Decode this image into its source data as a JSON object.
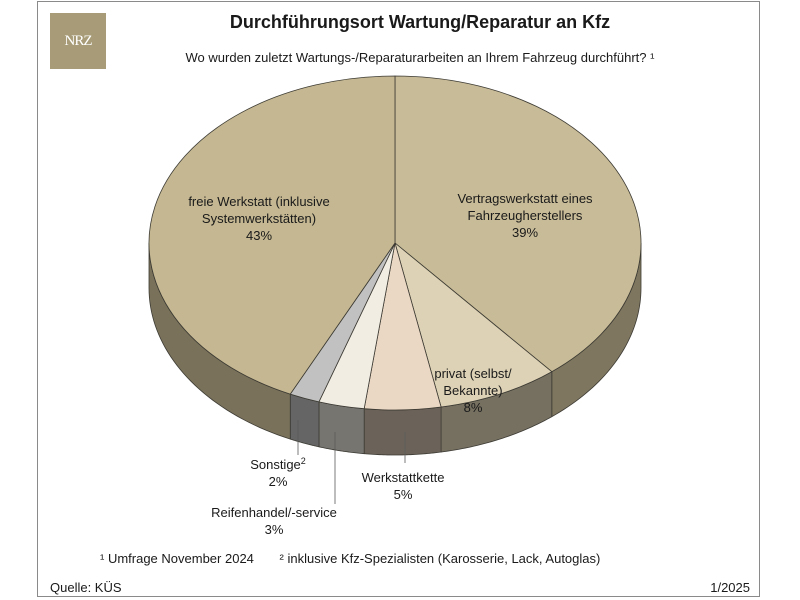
{
  "logo": "NRZ",
  "chart_data": {
    "type": "pie",
    "title": "Durchführungsort Wartung/Reparatur an Kfz",
    "subtitle": "Wo wurden zuletzt Wartungs-/Reparaturarbeiten an Ihrem Fahrzeug durchführt? ¹",
    "slices": [
      {
        "label": [
          "Vertragswerkstatt eines",
          "Fahrzeugherstellers"
        ],
        "value": 39,
        "value_label": "39%",
        "color": "#c8bb97"
      },
      {
        "label": [
          "privat (selbst/",
          "Bekannte)"
        ],
        "value": 8,
        "value_label": "8%",
        "color": "#ddd2b5"
      },
      {
        "label": [
          "Werkstattkette"
        ],
        "value": 5,
        "value_label": "5%",
        "color": "#ebd8c4"
      },
      {
        "label": [
          "Reifenhandel/-service"
        ],
        "value": 3,
        "value_label": "3%",
        "color": "#f1ede3"
      },
      {
        "label": [
          "Sonstige²"
        ],
        "value": 2,
        "value_label": "2%",
        "color": "#c1c1c1"
      },
      {
        "label": [
          "freie Werkstatt (inklusive",
          "Systemwerkstätten)"
        ],
        "value": 43,
        "value_label": "43%",
        "color": "#c4b791"
      }
    ]
  },
  "footnotes": {
    "note1": "¹ Umfrage November 2024",
    "note2": "² inklusive Kfz-Spezialisten (Karosserie, Lack, Autoglas)"
  },
  "source": "Quelle: KÜS",
  "date": "1/2025"
}
